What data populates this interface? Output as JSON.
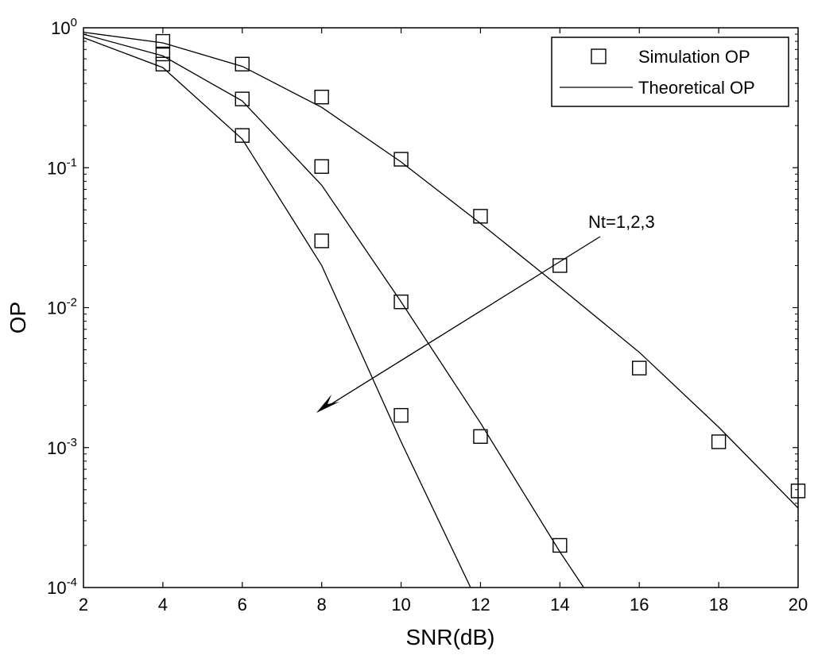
{
  "chart_data": {
    "type": "line",
    "title": "",
    "xlabel": "SNR(dB)",
    "ylabel": "OP",
    "xlim": [
      2,
      20
    ],
    "ylim": [
      0.0001,
      1
    ],
    "y_scale": "log",
    "x_ticks": [
      "2",
      "4",
      "6",
      "8",
      "10",
      "12",
      "14",
      "16",
      "18",
      "20"
    ],
    "y_ticks": [
      {
        "base": "10",
        "exp": "0"
      },
      {
        "base": "10",
        "exp": "-1"
      },
      {
        "base": "10",
        "exp": "-2"
      },
      {
        "base": "10",
        "exp": "-3"
      },
      {
        "base": "10",
        "exp": "-4"
      }
    ],
    "grid": false,
    "legend": {
      "position": "top-right",
      "entries": [
        {
          "label": "Simulation OP",
          "marker": "square"
        },
        {
          "label": "Theoretical OP",
          "marker": "line"
        }
      ]
    },
    "annotation": {
      "text": "Nt=1,2,3"
    },
    "series": [
      {
        "theory": {
          "x": [
            2,
            4,
            6,
            8,
            10,
            12,
            14,
            16,
            18,
            20
          ],
          "y": [
            0.93,
            0.78,
            0.53,
            0.27,
            0.11,
            0.04,
            0.014,
            0.0048,
            0.0014,
            0.00037
          ]
        },
        "simulation": {
          "x": [
            4,
            6,
            8,
            10,
            12,
            14,
            16,
            18,
            20
          ],
          "y": [
            0.8,
            0.55,
            0.32,
            0.115,
            0.045,
            0.02,
            0.0037,
            0.0011,
            0.00049
          ]
        }
      },
      {
        "theory": {
          "x": [
            2,
            4,
            6,
            8,
            10,
            12,
            14,
            14.6
          ],
          "y": [
            0.9,
            0.63,
            0.3,
            0.075,
            0.011,
            0.0015,
            0.00018,
            0.0001
          ]
        },
        "simulation": {
          "x": [
            4,
            6,
            8,
            10,
            12,
            14
          ],
          "y": [
            0.65,
            0.31,
            0.102,
            0.011,
            0.0012,
            0.0002
          ]
        }
      },
      {
        "theory": {
          "x": [
            2,
            4,
            6,
            8,
            10,
            11.75
          ],
          "y": [
            0.85,
            0.52,
            0.16,
            0.02,
            0.0011,
            0.0001
          ]
        },
        "simulation": {
          "x": [
            4,
            6,
            8,
            10
          ],
          "y": [
            0.55,
            0.17,
            0.03,
            0.0017
          ]
        }
      }
    ]
  }
}
